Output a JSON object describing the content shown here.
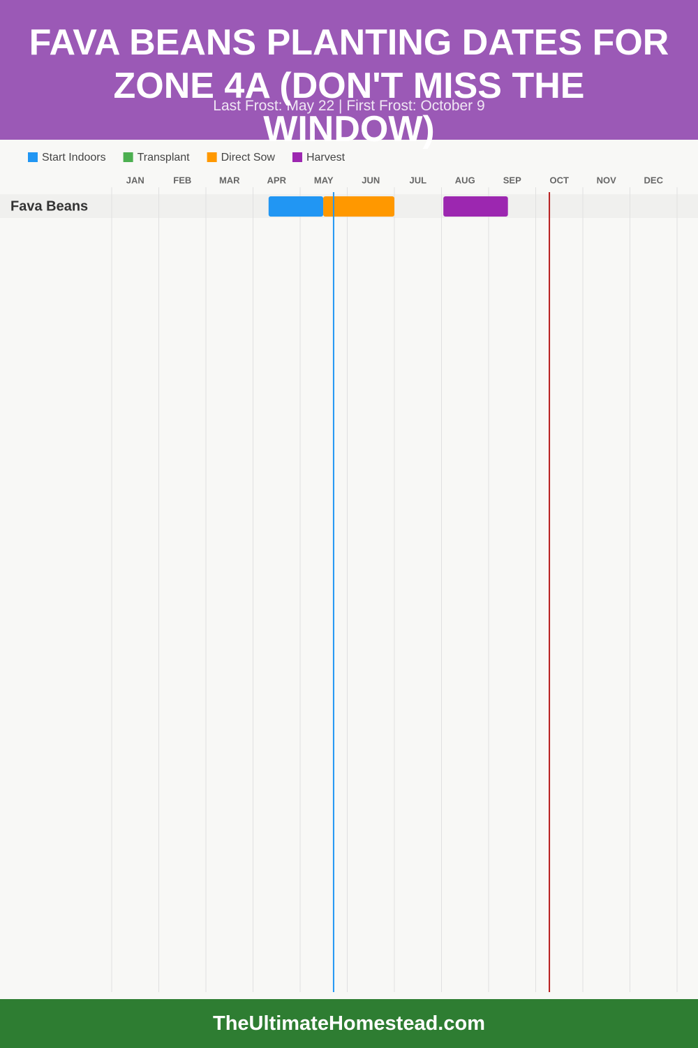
{
  "header": {
    "title": "FAVA BEANS PLANTING DATES FOR ZONE 4A (DON'T MISS THE WINDOW)",
    "subtitle": "Last Frost: May 22 | First Frost: October 9"
  },
  "chart_data": {
    "type": "gantt",
    "categories": [
      "JAN",
      "FEB",
      "MAR",
      "APR",
      "MAY",
      "JUN",
      "JUL",
      "AUG",
      "SEP",
      "OCT",
      "NOV",
      "DEC"
    ],
    "xlim": [
      0,
      12
    ],
    "rows": [
      "Fava Beans"
    ],
    "series": [
      {
        "name": "Start Indoors",
        "color": "#2196f3",
        "ranges": [
          [
            3.33,
            4.49
          ]
        ]
      },
      {
        "name": "Transplant",
        "color": "#4caf50",
        "ranges": []
      },
      {
        "name": "Direct Sow",
        "color": "#ff9800",
        "ranges": [
          [
            4.49,
            6.0
          ]
        ]
      },
      {
        "name": "Harvest",
        "color": "#9c27b0",
        "ranges": [
          [
            7.04,
            8.41
          ]
        ]
      }
    ],
    "markers": [
      {
        "value": 4.71,
        "color": "#2196f3"
      },
      {
        "value": 9.29,
        "color": "#b71c1c"
      }
    ],
    "grid": true
  },
  "footer": "TheUltimateHomestead.com"
}
